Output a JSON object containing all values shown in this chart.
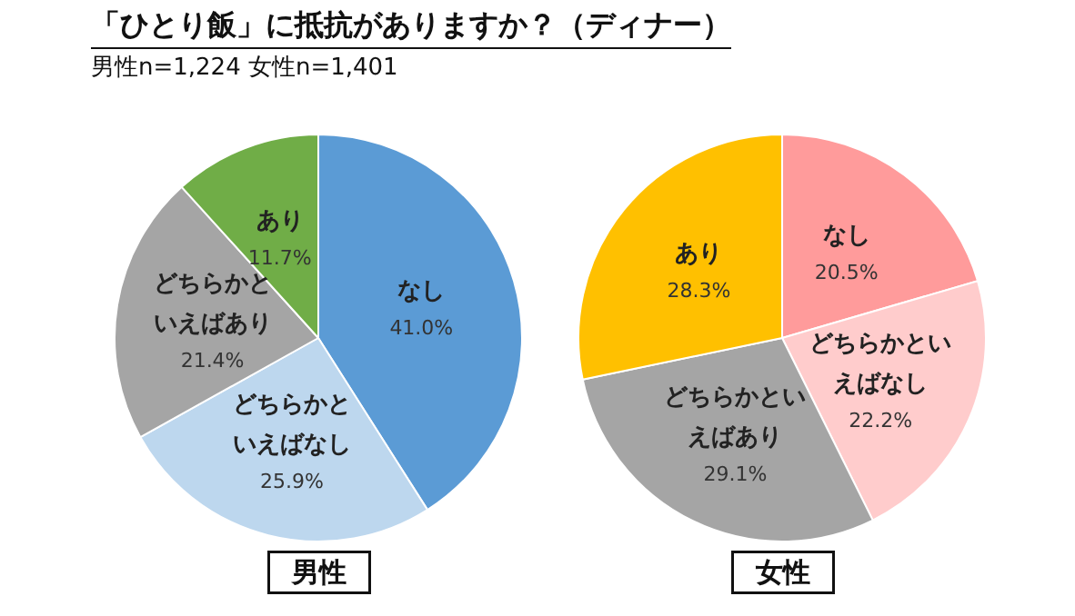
{
  "chart_data": [
    {
      "type": "pie",
      "title": "「ひとり飯」に抵抗がありますか？（ディナー）",
      "subtitle": "男性n=1,224 女性n=1,401",
      "xlabel": "男性",
      "categories": [
        "なし",
        "どちらかといえばなし",
        "どちらかといえばあり",
        "あり"
      ],
      "values": [
        41.0,
        25.9,
        21.4,
        11.7
      ],
      "colors": [
        "#5b9bd5",
        "#bdd7ee",
        "#a5a5a5",
        "#70ad47"
      ],
      "value_labels": [
        "41.0%",
        "25.9%",
        "21.4%",
        "11.7%"
      ],
      "legend": false
    },
    {
      "type": "pie",
      "xlabel": "女性",
      "categories": [
        "なし",
        "どちらかといえばなし",
        "どちらかといえばあり",
        "あり"
      ],
      "values": [
        20.5,
        22.2,
        29.1,
        28.3
      ],
      "colors": [
        "#ff9b9b",
        "#ffcccc",
        "#a5a5a5",
        "#ffc000"
      ],
      "value_labels": [
        "20.5%",
        "22.2%",
        "29.1%",
        "28.3%"
      ],
      "legend": false
    }
  ]
}
